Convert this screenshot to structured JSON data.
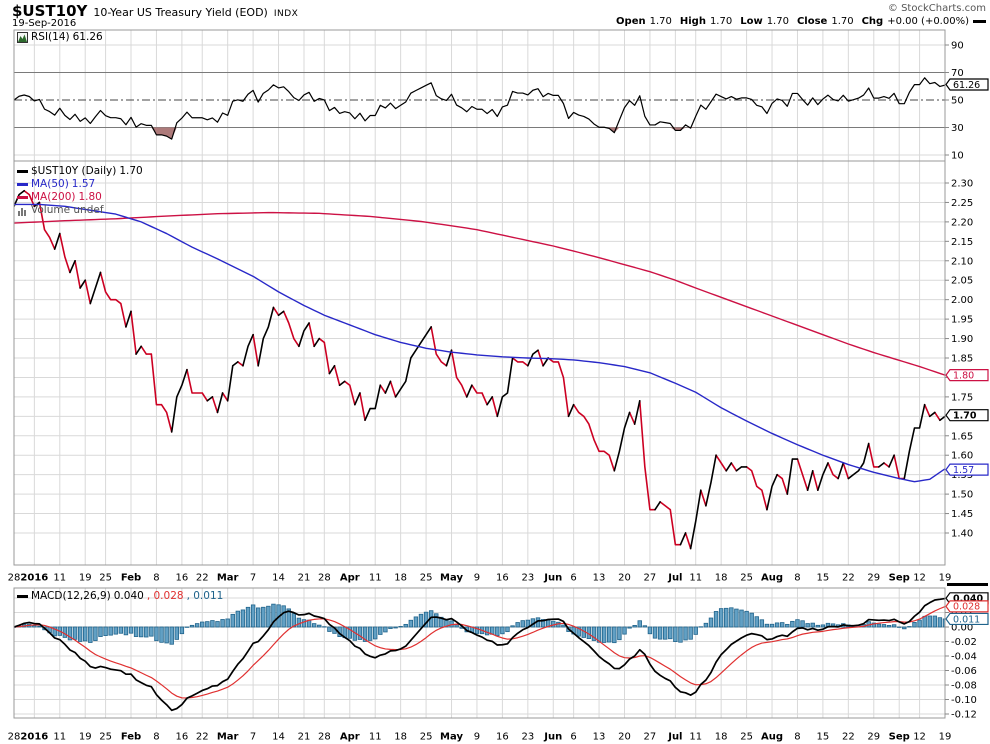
{
  "header": {
    "symbol": "$UST10Y",
    "title": "10-Year US Treasury Yield (EOD)",
    "exchange": "INDX",
    "date": "19-Sep-2016",
    "copyright": "© StockCharts.com",
    "quote": {
      "open_label": "Open",
      "open_value": "1.70",
      "high_label": "High",
      "high_value": "1.70",
      "low_label": "Low",
      "low_value": "1.70",
      "close_label": "Close",
      "close_value": "1.70",
      "chg_label": "Chg",
      "chg_value": "+0.00 (+0.00%)"
    }
  },
  "colors": {
    "up": "#000000",
    "down": "#cc0022",
    "ma50": "#2828c8",
    "ma200": "#cc1144",
    "grid": "#d9d9d9",
    "panel_border": "#999999",
    "band_line": "#7a7a7a",
    "mid_line": "#444444",
    "zero_line": "#aaaaaa",
    "hist_fill": "#62a0c4",
    "hist_stroke": "#20648c",
    "rsi_fill": "#ad7a7a",
    "rsi_line": "#000000",
    "macd_line": "#000000",
    "signal_line": "#e03030",
    "text_gray": "#555555"
  },
  "x_axis": {
    "tick_indices": [
      0,
      4,
      9,
      14,
      18,
      23,
      28,
      33,
      37,
      42,
      47,
      52,
      57,
      61,
      66,
      71,
      76,
      81,
      86,
      91,
      96,
      101,
      106,
      110,
      115,
      120,
      125,
      130,
      134,
      139,
      144,
      149,
      154,
      159,
      164,
      169,
      174,
      178,
      183
    ],
    "tick_labels": [
      "28",
      "2016",
      "11",
      "19",
      "25",
      "Feb",
      "8",
      "16",
      "22",
      "Mar",
      "7",
      "14",
      "21",
      "28",
      "Apr",
      "11",
      "18",
      "25",
      "May",
      "9",
      "16",
      "23",
      "Jun",
      "6",
      "13",
      "20",
      "27",
      "Jul",
      "11",
      "18",
      "25",
      "Aug",
      "8",
      "15",
      "22",
      "29",
      "Sep",
      "12",
      "19"
    ],
    "bold": [
      false,
      true,
      false,
      false,
      false,
      true,
      false,
      false,
      false,
      true,
      false,
      false,
      false,
      false,
      true,
      false,
      false,
      false,
      true,
      false,
      false,
      false,
      true,
      false,
      false,
      false,
      false,
      true,
      false,
      false,
      false,
      true,
      false,
      false,
      false,
      false,
      true,
      false,
      false
    ]
  },
  "chart_data": [
    {
      "panel": "rsi",
      "type": "line",
      "legend": "RSI(14)",
      "legend_value": "61.26",
      "period": 14,
      "yticks": [
        90,
        70,
        50,
        30,
        10
      ],
      "overbought": 70,
      "oversold": 30,
      "midline": 50,
      "last_value": 61.26,
      "label_boxes": [
        {
          "text": "61.26",
          "value": 61.26,
          "color": "up",
          "bold": false
        }
      ]
    },
    {
      "panel": "price",
      "type": "line",
      "legend_symbol": "$UST10Y (Daily)",
      "legend_symbol_value": "1.70",
      "legend_ma50": "MA(50)",
      "legend_ma50_value": "1.57",
      "legend_ma200": "MA(200)",
      "legend_ma200_value": "1.80",
      "volume_label": "Volume undef",
      "ylim": [
        1.318,
        2.351
      ],
      "yticks": [
        "2.30",
        "2.25",
        "2.20",
        "2.15",
        "2.10",
        "2.05",
        "2.00",
        "1.95",
        "1.90",
        "1.85",
        "1.80",
        "1.75",
        "1.70",
        "1.65",
        "1.60",
        "1.55",
        "1.50",
        "1.45",
        "1.40"
      ],
      "prices": [
        2.24,
        2.27,
        2.28,
        2.27,
        2.24,
        2.25,
        2.18,
        2.16,
        2.13,
        2.17,
        2.11,
        2.07,
        2.1,
        2.03,
        2.05,
        1.99,
        2.03,
        2.07,
        2.02,
        2.0,
        2.0,
        1.99,
        1.93,
        1.97,
        1.86,
        1.88,
        1.86,
        1.86,
        1.73,
        1.73,
        1.71,
        1.66,
        1.75,
        1.78,
        1.82,
        1.76,
        1.76,
        1.76,
        1.74,
        1.75,
        1.71,
        1.76,
        1.74,
        1.83,
        1.84,
        1.83,
        1.88,
        1.91,
        1.83,
        1.9,
        1.93,
        1.98,
        1.96,
        1.97,
        1.94,
        1.9,
        1.88,
        1.92,
        1.94,
        1.88,
        1.9,
        1.89,
        1.81,
        1.83,
        1.78,
        1.79,
        1.78,
        1.73,
        1.76,
        1.69,
        1.72,
        1.72,
        1.78,
        1.76,
        1.79,
        1.75,
        1.77,
        1.79,
        1.85,
        1.87,
        1.89,
        1.91,
        1.93,
        1.86,
        1.84,
        1.83,
        1.87,
        1.8,
        1.78,
        1.75,
        1.78,
        1.76,
        1.76,
        1.73,
        1.75,
        1.7,
        1.75,
        1.76,
        1.85,
        1.84,
        1.84,
        1.83,
        1.86,
        1.87,
        1.83,
        1.85,
        1.84,
        1.84,
        1.8,
        1.7,
        1.73,
        1.71,
        1.7,
        1.68,
        1.64,
        1.61,
        1.61,
        1.6,
        1.56,
        1.61,
        1.67,
        1.71,
        1.68,
        1.74,
        1.57,
        1.46,
        1.46,
        1.48,
        1.47,
        1.46,
        1.37,
        1.37,
        1.4,
        1.36,
        1.43,
        1.51,
        1.47,
        1.53,
        1.6,
        1.58,
        1.56,
        1.58,
        1.56,
        1.57,
        1.57,
        1.56,
        1.52,
        1.51,
        1.46,
        1.52,
        1.55,
        1.54,
        1.5,
        1.59,
        1.59,
        1.55,
        1.51,
        1.56,
        1.51,
        1.55,
        1.58,
        1.55,
        1.54,
        1.58,
        1.54,
        1.55,
        1.56,
        1.58,
        1.63,
        1.57,
        1.57,
        1.58,
        1.57,
        1.6,
        1.54,
        1.54,
        1.61,
        1.67,
        1.67,
        1.73,
        1.7,
        1.71,
        1.69,
        1.7
      ],
      "ma50": [
        [
          0,
          2.245
        ],
        [
          5,
          2.245
        ],
        [
          10,
          2.24
        ],
        [
          15,
          2.23
        ],
        [
          20,
          2.22
        ],
        [
          25,
          2.2
        ],
        [
          30,
          2.17
        ],
        [
          35,
          2.135
        ],
        [
          40,
          2.105
        ],
        [
          47,
          2.06
        ],
        [
          52,
          2.02
        ],
        [
          57,
          1.985
        ],
        [
          61,
          1.96
        ],
        [
          66,
          1.935
        ],
        [
          71,
          1.91
        ],
        [
          76,
          1.89
        ],
        [
          81,
          1.875
        ],
        [
          86,
          1.865
        ],
        [
          91,
          1.858
        ],
        [
          96,
          1.853
        ],
        [
          101,
          1.85
        ],
        [
          106,
          1.848
        ],
        [
          110,
          1.845
        ],
        [
          115,
          1.838
        ],
        [
          120,
          1.828
        ],
        [
          125,
          1.812
        ],
        [
          130,
          1.785
        ],
        [
          134,
          1.762
        ],
        [
          139,
          1.722
        ],
        [
          144,
          1.688
        ],
        [
          149,
          1.656
        ],
        [
          154,
          1.627
        ],
        [
          159,
          1.6
        ],
        [
          164,
          1.576
        ],
        [
          169,
          1.556
        ],
        [
          174,
          1.54
        ],
        [
          177,
          1.532
        ],
        [
          180,
          1.538
        ],
        [
          183,
          1.565
        ]
      ],
      "ma200": [
        [
          0,
          2.197
        ],
        [
          10,
          2.203
        ],
        [
          20,
          2.208
        ],
        [
          30,
          2.215
        ],
        [
          40,
          2.221
        ],
        [
          50,
          2.224
        ],
        [
          60,
          2.222
        ],
        [
          70,
          2.214
        ],
        [
          80,
          2.201
        ],
        [
          86,
          2.19
        ],
        [
          91,
          2.18
        ],
        [
          96,
          2.166
        ],
        [
          101,
          2.152
        ],
        [
          106,
          2.138
        ],
        [
          110,
          2.125
        ],
        [
          115,
          2.108
        ],
        [
          120,
          2.09
        ],
        [
          125,
          2.072
        ],
        [
          130,
          2.05
        ],
        [
          134,
          2.03
        ],
        [
          139,
          2.006
        ],
        [
          144,
          1.982
        ],
        [
          149,
          1.958
        ],
        [
          154,
          1.934
        ],
        [
          159,
          1.91
        ],
        [
          164,
          1.886
        ],
        [
          169,
          1.864
        ],
        [
          174,
          1.844
        ],
        [
          178,
          1.828
        ],
        [
          183,
          1.806
        ]
      ],
      "label_boxes": [
        {
          "text": "1.80",
          "value": 1.806,
          "color": "ma200",
          "bold": false
        },
        {
          "text": "1.70",
          "value": 1.703,
          "color": "up",
          "bold": true
        },
        {
          "text": "1.57",
          "value": 1.563,
          "color": "ma50",
          "bold": false
        }
      ]
    },
    {
      "panel": "macd",
      "type": "macd",
      "legend": "MACD(12,26,9)",
      "values_labels": [
        "0.040",
        "0.028",
        "0.011"
      ],
      "sep": ", ",
      "params": {
        "fast": 12,
        "slow": 26,
        "signal": 9
      },
      "yticks": [
        "0.04",
        "0.02",
        "0.00",
        "-0.02",
        "-0.04",
        "-0.06",
        "-0.08",
        "-0.10",
        "-0.12"
      ],
      "ylim": [
        -0.1255,
        0.0538
      ],
      "label_boxes": [
        {
          "text": "0.040",
          "value": 0.0396,
          "color": "macd_line",
          "bold": true
        },
        {
          "text": "0.028",
          "value": 0.0285,
          "color": "signal_line",
          "bold": false
        },
        {
          "text": "0.011",
          "value": 0.0111,
          "color": "hist_stroke",
          "bold": false
        }
      ]
    }
  ]
}
